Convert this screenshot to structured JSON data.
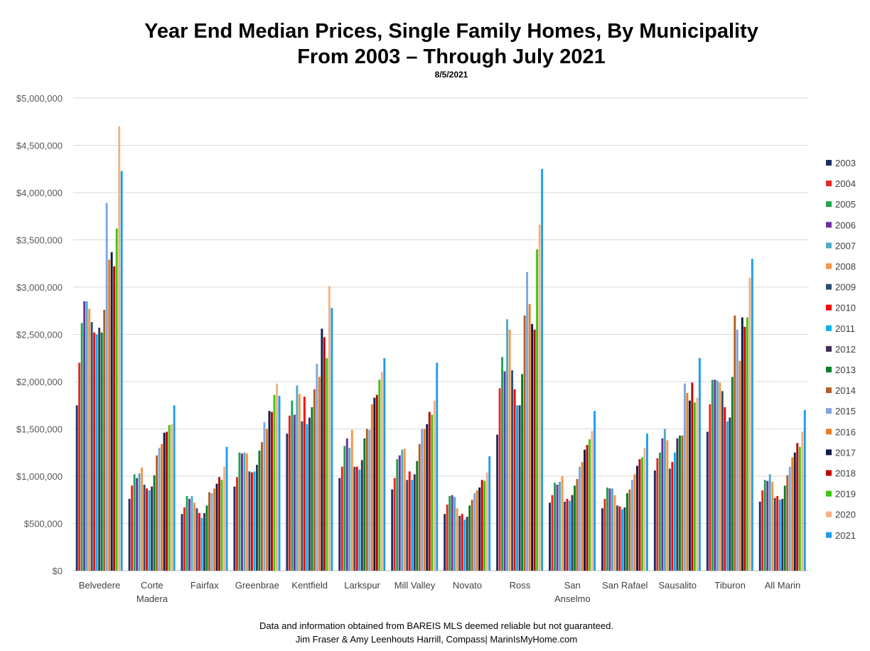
{
  "chart_data": {
    "type": "bar",
    "title_line1": "Year End Median Prices, Single Family Homes, By Municipality",
    "title_line2": "From 2003 – Through July 2021",
    "subtitle": "8/5/2021",
    "ylim": [
      0,
      5000000
    ],
    "yticks": [
      0,
      500000,
      1000000,
      1500000,
      2000000,
      2500000,
      3000000,
      3500000,
      4000000,
      4500000,
      5000000
    ],
    "ytick_labels": [
      "$0",
      "$500,000",
      "$1,000,000",
      "$1,500,000",
      "$2,000,000",
      "$2,500,000",
      "$3,000,000",
      "$3,500,000",
      "$4,000,000",
      "$4,500,000",
      "$5,000,000"
    ],
    "grid": true,
    "legend_position": "right",
    "categories": [
      "Belvedere",
      "Corte Madera",
      "Fairfax",
      "Greenbrae",
      "Kentfield",
      "Larkspur",
      "Mill Valley",
      "Novato",
      "Ross",
      "San Anselmo",
      "San Rafael",
      "Sausalito",
      "Tiburon",
      "All Marin"
    ],
    "category_labels": [
      [
        "Belvedere"
      ],
      [
        "Corte",
        "Madera"
      ],
      [
        "Fairfax"
      ],
      [
        "Greenbrae"
      ],
      [
        "Kentfield"
      ],
      [
        "Larkspur"
      ],
      [
        "Mill Valley"
      ],
      [
        "Novato"
      ],
      [
        "Ross"
      ],
      [
        "San",
        "Anselmo"
      ],
      [
        "San Rafael"
      ],
      [
        "Sausalito"
      ],
      [
        "Tiburon"
      ],
      [
        "All Marin"
      ]
    ],
    "series": [
      {
        "name": "2003",
        "color": "#1f2d66",
        "values": [
          1750000,
          760000,
          600000,
          890000,
          1450000,
          980000,
          860000,
          600000,
          1440000,
          720000,
          660000,
          1060000,
          1470000,
          730000
        ]
      },
      {
        "name": "2004",
        "color": "#e8281e",
        "values": [
          2200000,
          900000,
          670000,
          990000,
          1640000,
          1100000,
          980000,
          700000,
          1930000,
          800000,
          760000,
          1190000,
          1760000,
          850000
        ]
      },
      {
        "name": "2005",
        "color": "#21a351",
        "values": [
          2620000,
          1020000,
          790000,
          1250000,
          1800000,
          1320000,
          1180000,
          790000,
          2260000,
          930000,
          880000,
          1250000,
          2020000,
          960000
        ]
      },
      {
        "name": "2006",
        "color": "#7030a0",
        "values": [
          2850000,
          980000,
          760000,
          1240000,
          1650000,
          1400000,
          1220000,
          800000,
          2110000,
          910000,
          870000,
          1400000,
          2020000,
          950000
        ]
      },
      {
        "name": "2007",
        "color": "#4bacc6",
        "values": [
          2850000,
          1030000,
          790000,
          1250000,
          1960000,
          1300000,
          1280000,
          780000,
          2660000,
          940000,
          870000,
          1500000,
          2010000,
          1020000
        ]
      },
      {
        "name": "2008",
        "color": "#f79646",
        "values": [
          2770000,
          1090000,
          720000,
          1240000,
          1870000,
          1490000,
          1290000,
          660000,
          2550000,
          1000000,
          800000,
          1380000,
          1990000,
          940000
        ]
      },
      {
        "name": "2009",
        "color": "#2e4e6e",
        "values": [
          2630000,
          910000,
          660000,
          1050000,
          1580000,
          1100000,
          960000,
          580000,
          2120000,
          730000,
          690000,
          1080000,
          1900000,
          770000
        ]
      },
      {
        "name": "2010",
        "color": "#ff0000",
        "values": [
          2520000,
          870000,
          610000,
          1040000,
          1840000,
          1100000,
          1050000,
          600000,
          1920000,
          760000,
          680000,
          1150000,
          1730000,
          790000
        ]
      },
      {
        "name": "2011",
        "color": "#00b0f0",
        "values": [
          2500000,
          850000,
          560000,
          1050000,
          1550000,
          1070000,
          960000,
          540000,
          1750000,
          740000,
          650000,
          1250000,
          1580000,
          750000
        ]
      },
      {
        "name": "2012",
        "color": "#403152",
        "values": [
          2570000,
          890000,
          610000,
          1120000,
          1620000,
          1170000,
          1020000,
          570000,
          1750000,
          800000,
          670000,
          1400000,
          1620000,
          760000
        ]
      },
      {
        "name": "2013",
        "color": "#00802b",
        "values": [
          2520000,
          1010000,
          690000,
          1270000,
          1730000,
          1400000,
          1160000,
          690000,
          2080000,
          900000,
          820000,
          1430000,
          2050000,
          900000
        ]
      },
      {
        "name": "2014",
        "color": "#b26024",
        "values": [
          2760000,
          1220000,
          830000,
          1360000,
          1920000,
          1500000,
          1340000,
          750000,
          2700000,
          970000,
          860000,
          1430000,
          2700000,
          1010000
        ]
      },
      {
        "name": "2015",
        "color": "#7ea6e0",
        "values": [
          3890000,
          1300000,
          820000,
          1570000,
          2190000,
          1490000,
          1500000,
          820000,
          3160000,
          1100000,
          960000,
          1980000,
          2550000,
          1100000
        ]
      },
      {
        "name": "2016",
        "color": "#e67e22",
        "values": [
          3290000,
          1340000,
          870000,
          1500000,
          2050000,
          1760000,
          1500000,
          850000,
          2820000,
          1150000,
          1020000,
          1880000,
          2220000,
          1200000
        ]
      },
      {
        "name": "2017",
        "color": "#0d1b4a",
        "values": [
          3370000,
          1460000,
          920000,
          1690000,
          2560000,
          1830000,
          1550000,
          880000,
          2610000,
          1280000,
          1110000,
          1800000,
          2680000,
          1250000
        ]
      },
      {
        "name": "2018",
        "color": "#c00000",
        "values": [
          3220000,
          1470000,
          990000,
          1680000,
          2470000,
          1860000,
          1680000,
          960000,
          2550000,
          1330000,
          1180000,
          1990000,
          2580000,
          1350000
        ]
      },
      {
        "name": "2019",
        "color": "#3ec60f",
        "values": [
          3620000,
          1540000,
          960000,
          1860000,
          2250000,
          2020000,
          1650000,
          950000,
          3400000,
          1390000,
          1200000,
          1780000,
          2680000,
          1310000
        ]
      },
      {
        "name": "2020",
        "color": "#f4b183",
        "values": [
          4700000,
          1550000,
          1100000,
          1980000,
          3010000,
          2100000,
          1800000,
          1040000,
          3660000,
          1480000,
          1300000,
          1830000,
          3100000,
          1470000
        ]
      },
      {
        "name": "2021",
        "color": "#1f9cea",
        "values": [
          4230000,
          1750000,
          1310000,
          1850000,
          2780000,
          2250000,
          2200000,
          1210000,
          4250000,
          1690000,
          1450000,
          2250000,
          3300000,
          1700000
        ]
      }
    ]
  },
  "footer": {
    "line1": "Data and information obtained from BAREIS MLS deemed reliable but not guaranteed.",
    "line2": "Jim Fraser & Amy Leenhouts Harrill, Compass| MarinIsMyHome.com"
  }
}
